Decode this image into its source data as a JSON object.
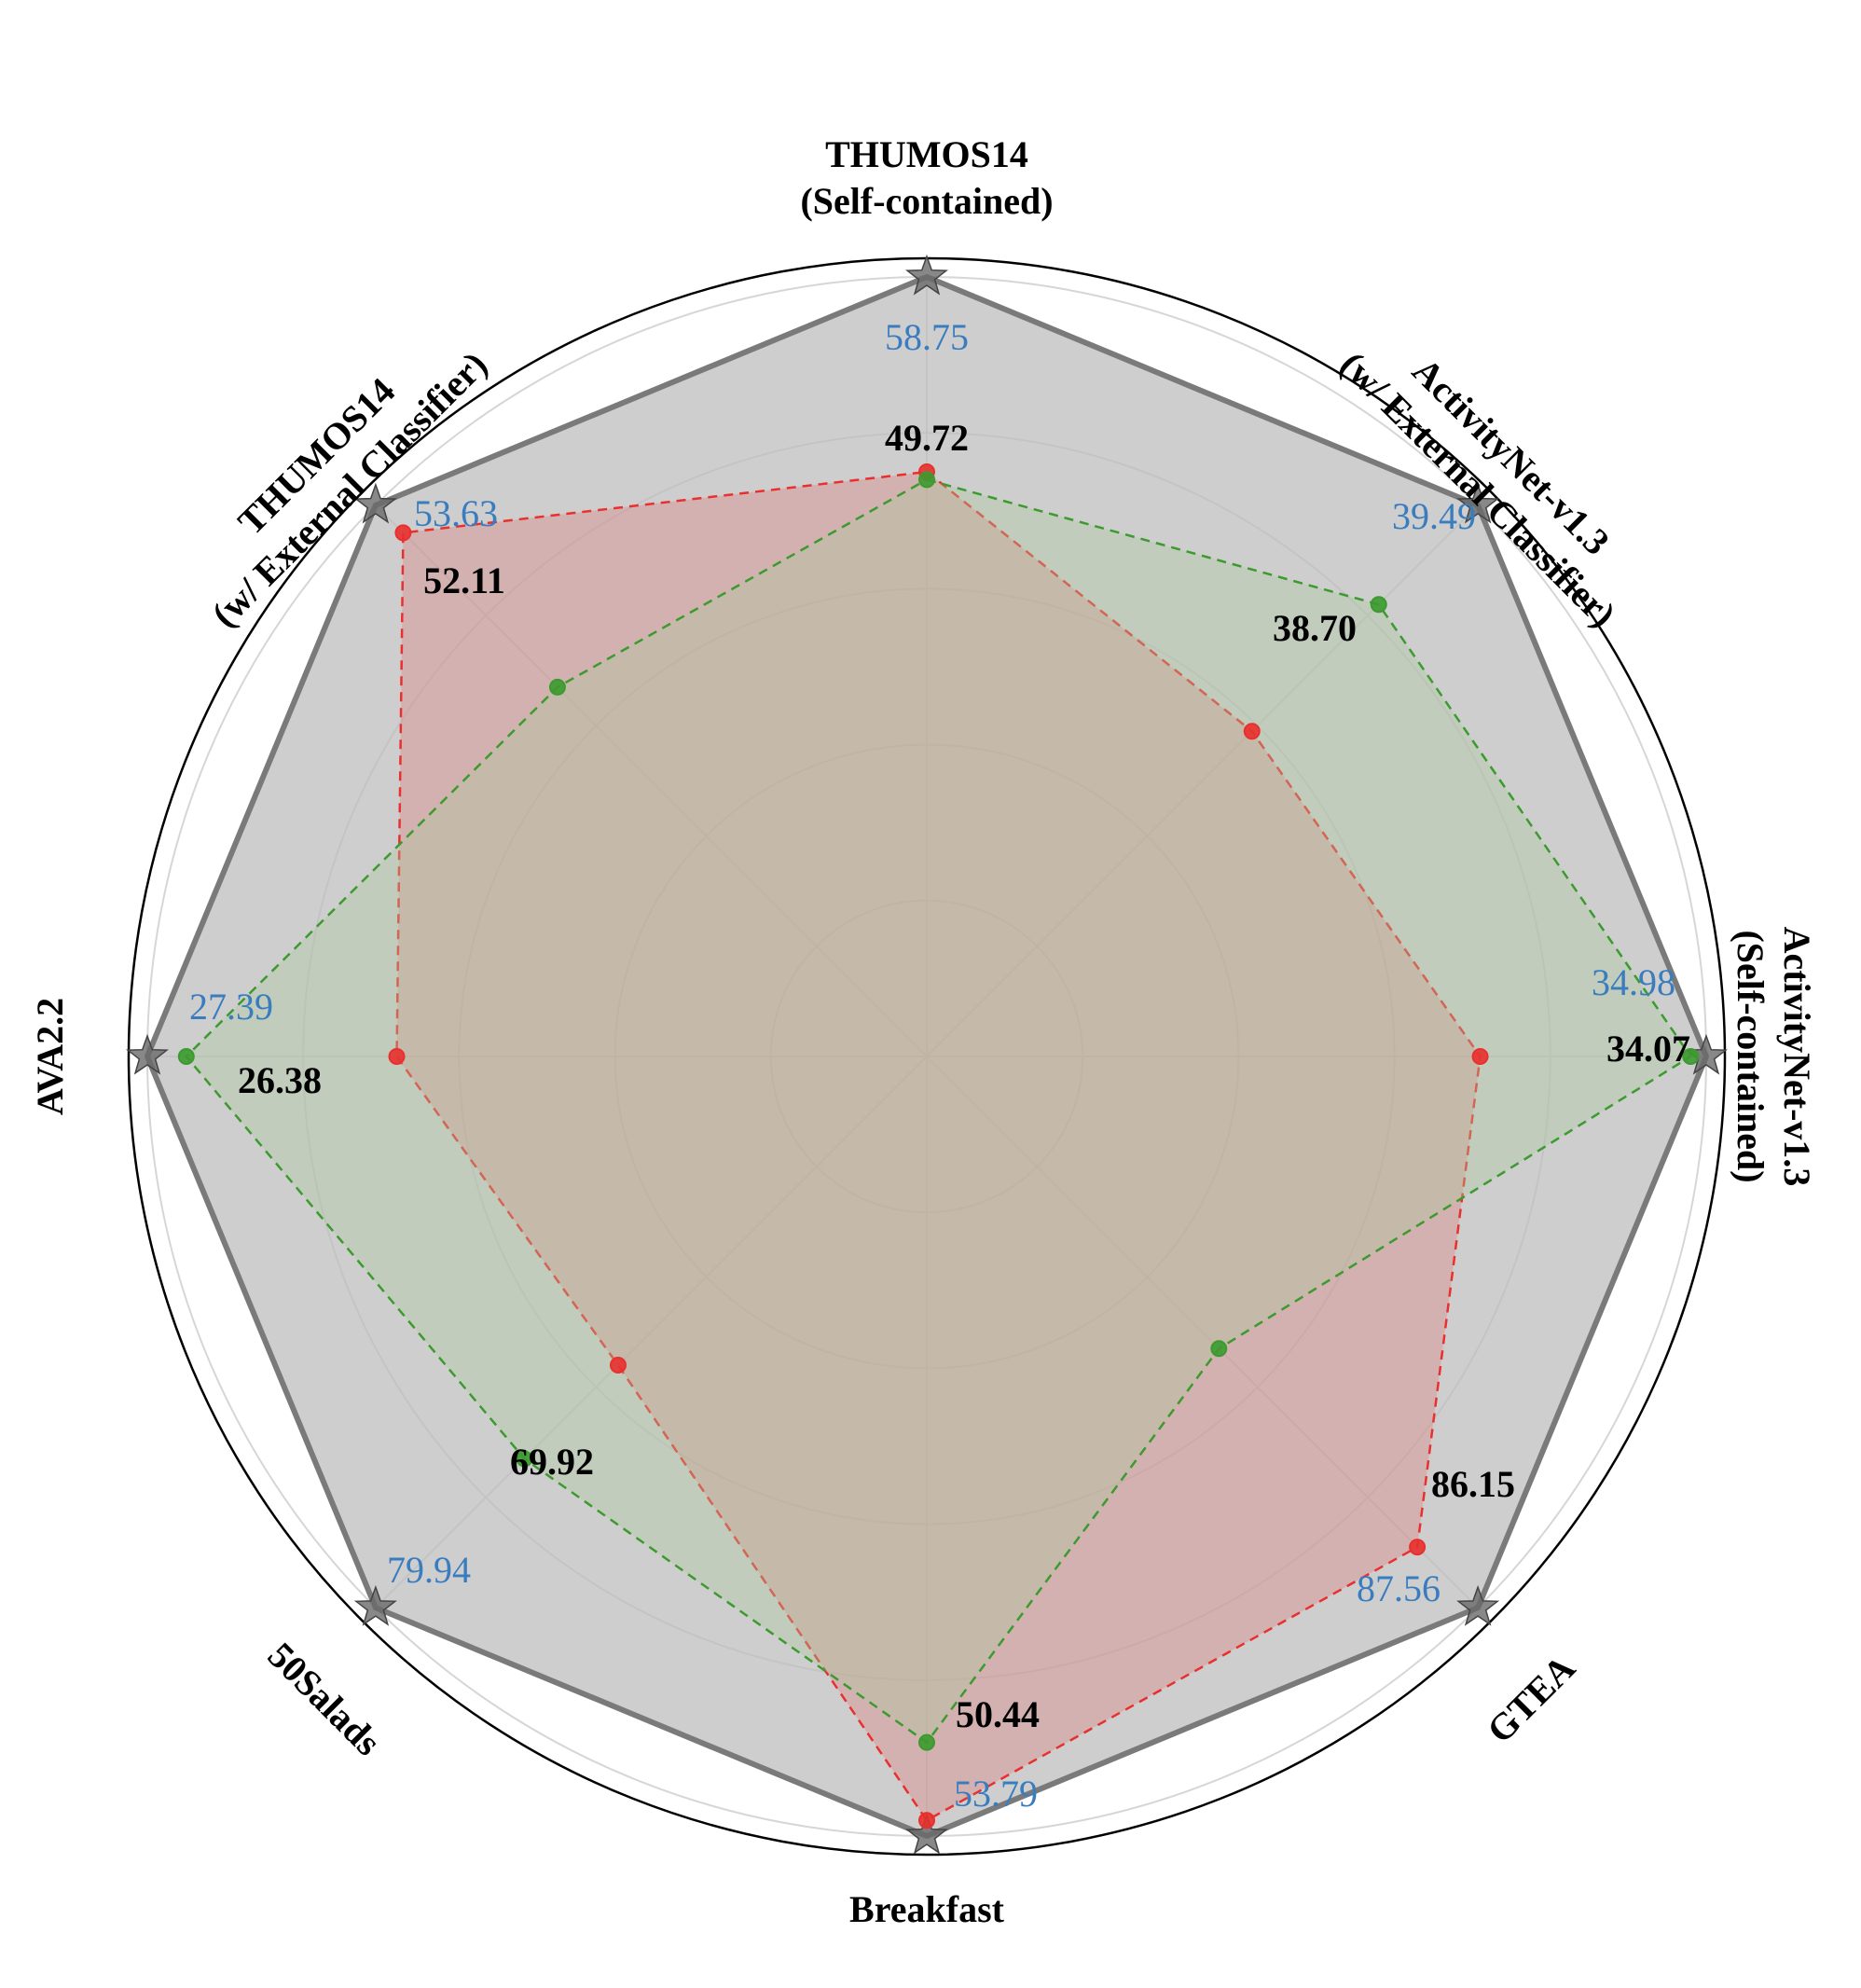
{
  "chart_data": {
    "type": "radar",
    "axes": [
      {
        "label_lines": [
          "THUMOS14",
          "(Self-contained)"
        ]
      },
      {
        "label_lines": [
          "ActivityNet-v1.3",
          "(w/ External Classifier)"
        ]
      },
      {
        "label_lines": [
          "ActivityNet-v1.3",
          "(Self-contained)"
        ]
      },
      {
        "label_lines": [
          "GTEA"
        ]
      },
      {
        "label_lines": [
          "Breakfast"
        ]
      },
      {
        "label_lines": [
          "50Salads"
        ]
      },
      {
        "label_lines": [
          "AVA2.2"
        ]
      },
      {
        "label_lines": [
          "THUMOS14",
          "(w/ External Classifier)"
        ]
      }
    ],
    "best_values": [
      "58.75",
      "39.49",
      "34.98",
      "87.56",
      "53.79",
      "79.94",
      "27.39",
      "53.63"
    ],
    "second_values": [
      "49.72",
      "38.70",
      "34.07",
      "86.15",
      "50.44",
      "69.92",
      "26.38",
      "52.11"
    ],
    "series": [
      {
        "key": "best",
        "values": [
          1.0,
          1.0,
          1.0,
          1.0,
          1.0,
          1.0,
          1.0,
          1.0
        ],
        "color": "#7a7a7a",
        "fill": "#bdbdbd"
      },
      {
        "key": "red",
        "values": [
          0.75,
          0.59,
          0.71,
          0.89,
          0.98,
          0.56,
          0.68,
          0.95
        ],
        "color": "#e8302e",
        "fill": "#e07b7b"
      },
      {
        "key": "green",
        "values": [
          0.74,
          0.82,
          0.98,
          0.53,
          0.88,
          0.73,
          0.95,
          0.67
        ],
        "color": "#3c9a2f",
        "fill": "#a8c99a"
      }
    ],
    "rlim": [
      0,
      1
    ],
    "grid": true,
    "colors": {
      "best_text": "#3a7dbf",
      "second_text": "#000000",
      "grid": "#d6d6d6",
      "frame": "#000000"
    }
  }
}
